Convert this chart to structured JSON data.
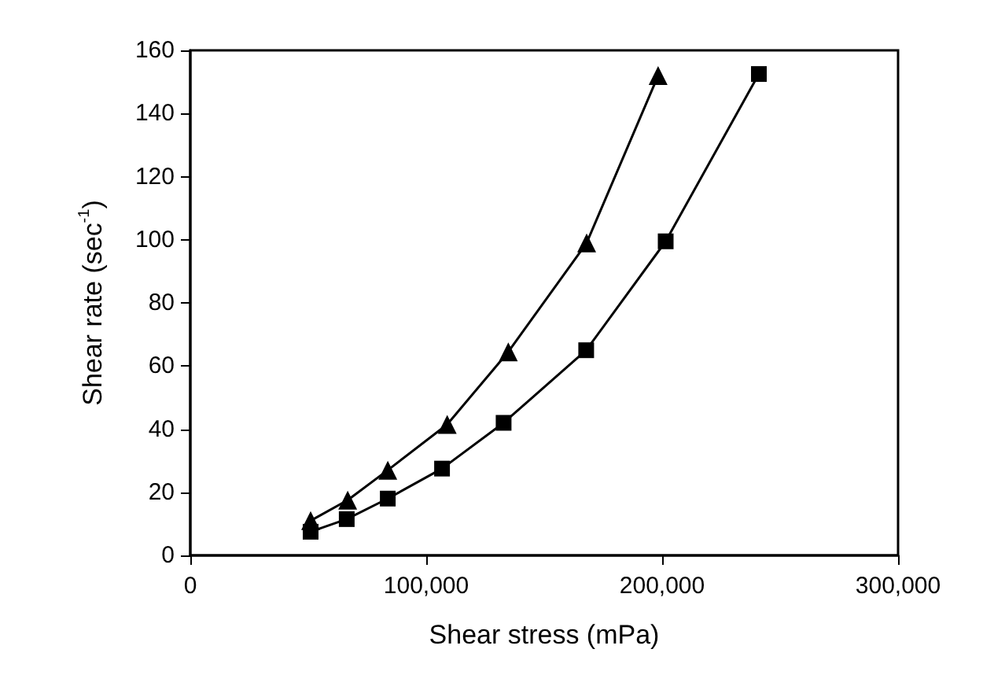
{
  "chart_data": {
    "type": "line",
    "xlabel": "Shear stress (mPa)",
    "ylabel": "Shear rate (sec$^{-1}$)",
    "xlim": [
      0,
      300000
    ],
    "xticks": [
      0,
      {
        "value": 100000,
        "label": "100,000"
      },
      {
        "value": 200000,
        "label": "200,000"
      },
      {
        "value": 300000,
        "label": "300,000"
      }
    ],
    "ylim": [
      0,
      160
    ],
    "yticks": [
      0,
      20,
      40,
      60,
      80,
      100,
      120,
      140,
      160
    ],
    "grid": false,
    "series": [
      {
        "color": "#000000",
        "marker": "triangle",
        "x": [
          51000,
          66700,
          83700,
          108900,
          134800,
          168000,
          198300
        ],
        "values": [
          11,
          17.5,
          27,
          41.5,
          64.5,
          99,
          152
        ]
      },
      {
        "color": "#000000",
        "marker": "square",
        "x": [
          51000,
          66300,
          83700,
          106700,
          132800,
          167800,
          201500,
          241000
        ],
        "values": [
          7.5,
          11.5,
          18,
          27.5,
          42,
          65,
          99.5,
          152.5
        ]
      }
    ]
  }
}
